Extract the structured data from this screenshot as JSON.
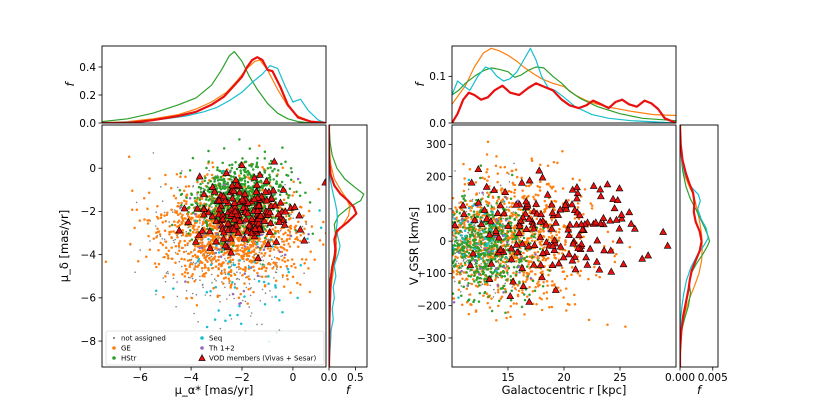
{
  "chart_data": [
    {
      "panel": "left-top-marginal",
      "type": "line",
      "ylabel": "f",
      "xlim": [
        -7.5,
        1.3
      ],
      "ylim": [
        0,
        0.55
      ],
      "yticks": [
        "0.0",
        "0.2",
        "0.4"
      ],
      "series": [
        {
          "name": "HStr",
          "color": "#2ca02c",
          "x": [
            -7.5,
            -6.5,
            -5.5,
            -4.5,
            -3.8,
            -3.2,
            -2.8,
            -2.5,
            -2.3,
            -2.0,
            -1.7,
            -1.4,
            -1.0,
            -0.6,
            -0.2,
            0.2,
            0.7,
            1.3
          ],
          "y": [
            0.01,
            0.03,
            0.07,
            0.13,
            0.18,
            0.27,
            0.38,
            0.48,
            0.51,
            0.44,
            0.33,
            0.24,
            0.14,
            0.07,
            0.03,
            0.01,
            0.0,
            0.0
          ]
        },
        {
          "name": "GE",
          "color": "#ff7f0e",
          "x": [
            -7.5,
            -6.5,
            -5.5,
            -4.5,
            -3.8,
            -3.2,
            -2.6,
            -2.2,
            -1.8,
            -1.5,
            -1.3,
            -1.0,
            -0.6,
            -0.2,
            0.2,
            0.7,
            1.3
          ],
          "y": [
            0.0,
            0.01,
            0.03,
            0.06,
            0.1,
            0.15,
            0.22,
            0.3,
            0.39,
            0.44,
            0.45,
            0.38,
            0.24,
            0.12,
            0.05,
            0.01,
            0.0
          ]
        },
        {
          "name": "Seq",
          "color": "#17becf",
          "x": [
            -7.5,
            -6.0,
            -5.0,
            -4.2,
            -3.5,
            -3.0,
            -2.5,
            -2.0,
            -1.6,
            -1.2,
            -0.9,
            -0.6,
            -0.3,
            0.0,
            0.3,
            0.6,
            1.0,
            1.3
          ],
          "y": [
            0.0,
            0.01,
            0.03,
            0.05,
            0.08,
            0.11,
            0.16,
            0.22,
            0.29,
            0.35,
            0.41,
            0.39,
            0.26,
            0.15,
            0.17,
            0.09,
            0.02,
            0.0
          ]
        },
        {
          "name": "VOD members (Vivas + Sesar)",
          "color": "#e8110f",
          "x": [
            -7.5,
            -6.5,
            -5.5,
            -4.5,
            -3.8,
            -3.2,
            -2.7,
            -2.3,
            -2.0,
            -1.8,
            -1.6,
            -1.4,
            -1.2,
            -1.0,
            -0.8,
            -0.5,
            -0.2,
            0.2,
            0.7,
            1.3
          ],
          "y": [
            0.0,
            0.0,
            0.02,
            0.05,
            0.08,
            0.13,
            0.19,
            0.27,
            0.33,
            0.4,
            0.45,
            0.47,
            0.45,
            0.38,
            0.37,
            0.26,
            0.13,
            0.04,
            0.01,
            0.0
          ]
        }
      ]
    },
    {
      "panel": "left-main-scatter",
      "type": "scatter",
      "xlabel": "μ_α* [mas/yr]",
      "ylabel": "μ_δ [mas/yr]",
      "xlim": [
        -7.5,
        1.3
      ],
      "ylim": [
        -9.2,
        2.0
      ],
      "xticks": [
        "−6",
        "−4",
        "−2",
        "0"
      ],
      "yticks": [
        "−8",
        "−6",
        "−4",
        "−2",
        "0"
      ],
      "groups": [
        {
          "name": "not assigned",
          "color": "#7f7f7f",
          "marker": "circle-small",
          "center": [
            -2.6,
            -3.6
          ],
          "spread": [
            1.3,
            1.5
          ],
          "count": 450
        },
        {
          "name": "GE",
          "color": "#ff7f0e",
          "marker": "circle",
          "center": [
            -2.5,
            -2.9
          ],
          "spread": [
            1.5,
            1.2
          ],
          "count": 1200
        },
        {
          "name": "HStr",
          "color": "#2ca02c",
          "marker": "circle",
          "center": [
            -2.1,
            -1.4
          ],
          "spread": [
            0.9,
            0.85
          ],
          "count": 800
        },
        {
          "name": "Seq",
          "color": "#17becf",
          "marker": "circle",
          "center": [
            -1.6,
            -4.6
          ],
          "spread": [
            1.4,
            1.7
          ],
          "count": 70
        },
        {
          "name": "Th 1+2",
          "color": "#9467bd",
          "marker": "circle",
          "center": [
            -2.5,
            -3.2
          ],
          "spread": [
            1.5,
            1.5
          ],
          "count": 40
        },
        {
          "name": "VOD members (Vivas + Sesar)",
          "color": "#e8110f",
          "marker": "triangle",
          "center": [
            -2.0,
            -2.0
          ],
          "spread": [
            1.0,
            0.75
          ],
          "count": 180
        }
      ]
    },
    {
      "panel": "left-right-marginal",
      "type": "line",
      "xlabel": "f",
      "xlim": [
        0,
        0.72
      ],
      "ylim": [
        -9.2,
        2.0
      ],
      "xticks": [
        "0.0",
        "0.5"
      ],
      "series": [
        {
          "name": "HStr",
          "color": "#2ca02c",
          "y": [
            2.0,
            1.2,
            0.6,
            0.0,
            -0.5,
            -0.9,
            -1.2,
            -1.5,
            -1.8,
            -2.2,
            -2.6,
            -3.0,
            -3.5,
            -4.0,
            -4.6,
            -5.2,
            -6.0,
            -9.2
          ],
          "x": [
            0.0,
            0.02,
            0.06,
            0.15,
            0.3,
            0.5,
            0.66,
            0.6,
            0.38,
            0.18,
            0.1,
            0.12,
            0.14,
            0.1,
            0.05,
            0.02,
            0.01,
            0.0
          ]
        },
        {
          "name": "GE",
          "color": "#ff7f0e",
          "y": [
            2.0,
            1.0,
            0.2,
            -0.5,
            -1.0,
            -1.4,
            -1.8,
            -2.2,
            -2.6,
            -3.0,
            -3.4,
            -3.8,
            -4.3,
            -4.8,
            -5.5,
            -6.3,
            -7.5,
            -9.2
          ],
          "x": [
            0.0,
            0.01,
            0.03,
            0.1,
            0.22,
            0.33,
            0.4,
            0.37,
            0.27,
            0.15,
            0.13,
            0.14,
            0.12,
            0.08,
            0.04,
            0.02,
            0.01,
            0.0
          ]
        },
        {
          "name": "Seq",
          "color": "#17becf",
          "y": [
            2.0,
            0.5,
            -0.5,
            -1.2,
            -1.6,
            -2.0,
            -2.4,
            -2.8,
            -3.2,
            -3.6,
            -4.0,
            -4.5,
            -5.0,
            -5.5,
            -6.0,
            -6.5,
            -7.0,
            -7.5,
            -8.0,
            -9.2
          ],
          "x": [
            0.0,
            0.0,
            0.02,
            0.08,
            0.12,
            0.15,
            0.16,
            0.14,
            0.17,
            0.21,
            0.17,
            0.1,
            0.13,
            0.08,
            0.1,
            0.06,
            0.08,
            0.04,
            0.03,
            0.0
          ]
        },
        {
          "name": "VOD members (Vivas + Sesar)",
          "color": "#e8110f",
          "y": [
            2.0,
            0.5,
            -0.3,
            -0.8,
            -1.2,
            -1.5,
            -1.8,
            -2.1,
            -2.5,
            -2.9,
            -3.3,
            -3.7,
            -4.1,
            -4.6,
            -5.2,
            -6.0,
            -7.0,
            -9.2
          ],
          "x": [
            0.0,
            0.0,
            0.03,
            0.1,
            0.22,
            0.36,
            0.47,
            0.52,
            0.35,
            0.15,
            0.1,
            0.12,
            0.11,
            0.06,
            0.03,
            0.02,
            0.01,
            0.0
          ]
        }
      ]
    },
    {
      "panel": "right-top-marginal",
      "type": "line",
      "ylabel": "f",
      "xlim": [
        10,
        30
      ],
      "ylim": [
        0,
        0.165
      ],
      "yticks": [
        "0.0",
        "0.1"
      ],
      "series": [
        {
          "name": "GE",
          "color": "#ff7f0e",
          "x": [
            10,
            10.6,
            11.2,
            12,
            12.8,
            13.5,
            14.2,
            15,
            15.8,
            16.5,
            17.3,
            18,
            19,
            20,
            21,
            22,
            23,
            24,
            26,
            28,
            30
          ],
          "y": [
            0.04,
            0.06,
            0.08,
            0.12,
            0.15,
            0.16,
            0.155,
            0.145,
            0.132,
            0.118,
            0.105,
            0.095,
            0.085,
            0.078,
            0.06,
            0.048,
            0.04,
            0.034,
            0.025,
            0.018,
            0.016
          ]
        },
        {
          "name": "HStr",
          "color": "#2ca02c",
          "x": [
            10,
            10.6,
            11.2,
            12,
            12.8,
            13.5,
            14.2,
            15,
            15.6,
            16.2,
            16.8,
            17.5,
            18.2,
            19,
            19.8,
            20.5,
            21.5,
            23,
            25,
            27,
            30
          ],
          "y": [
            0.06,
            0.07,
            0.085,
            0.1,
            0.112,
            0.118,
            0.115,
            0.11,
            0.098,
            0.103,
            0.113,
            0.12,
            0.118,
            0.1,
            0.085,
            0.068,
            0.052,
            0.035,
            0.02,
            0.01,
            0.005
          ]
        },
        {
          "name": "Seq",
          "color": "#17becf",
          "x": [
            10,
            10.5,
            11,
            11.6,
            12.3,
            13,
            13.5,
            14,
            14.6,
            15.2,
            15.8,
            16.4,
            17,
            17.5,
            18,
            18.6,
            19.2,
            20,
            21,
            22.5,
            24,
            26,
            30
          ],
          "y": [
            0.06,
            0.09,
            0.08,
            0.07,
            0.1,
            0.12,
            0.115,
            0.1,
            0.09,
            0.095,
            0.11,
            0.135,
            0.16,
            0.135,
            0.1,
            0.075,
            0.07,
            0.055,
            0.035,
            0.018,
            0.01,
            0.005,
            0.0
          ]
        },
        {
          "name": "VOD members (Vivas + Sesar)",
          "color": "#e8110f",
          "x": [
            10,
            10.5,
            11,
            11.5,
            12,
            12.6,
            13.2,
            13.8,
            14.5,
            15.2,
            16,
            16.8,
            17.5,
            18.2,
            19,
            19.8,
            20.5,
            21.3,
            22,
            22.6,
            23.3,
            24,
            24.6,
            25.2,
            25.8,
            26.5,
            27.2,
            27.8,
            28.4,
            29,
            30
          ],
          "y": [
            0.0,
            0.02,
            0.05,
            0.065,
            0.06,
            0.05,
            0.055,
            0.07,
            0.08,
            0.065,
            0.06,
            0.075,
            0.085,
            0.078,
            0.07,
            0.05,
            0.038,
            0.032,
            0.038,
            0.048,
            0.04,
            0.032,
            0.045,
            0.05,
            0.04,
            0.035,
            0.048,
            0.042,
            0.03,
            0.01,
            0.0
          ]
        }
      ]
    },
    {
      "panel": "right-main-scatter",
      "type": "scatter",
      "xlabel": "Galactocentric r [kpc]",
      "ylabel": "V_GSR [km/s]",
      "xlim": [
        10,
        30
      ],
      "ylim": [
        -390,
        360
      ],
      "xticks": [
        "15",
        "20",
        "25"
      ],
      "yticks": [
        "−300",
        "−200",
        "−100",
        "0",
        "100",
        "200",
        "300"
      ],
      "groups": [
        {
          "name": "not assigned",
          "color": "#7f7f7f",
          "marker": "circle-small",
          "center": [
            12.5,
            -5
          ],
          "spread": [
            2.4,
            70
          ],
          "count": 400
        },
        {
          "name": "GE",
          "color": "#ff7f0e",
          "center": [
            14.5,
            0
          ],
          "spread": [
            3.8,
            100
          ],
          "count": 1100
        },
        {
          "name": "HStr",
          "color": "#2ca02c",
          "center": [
            12.8,
            -20
          ],
          "spread": [
            2.2,
            80
          ],
          "count": 600
        },
        {
          "name": "Seq",
          "color": "#17becf",
          "center": [
            12.0,
            20
          ],
          "spread": [
            2.0,
            60
          ],
          "count": 50
        },
        {
          "name": "Th 1+2",
          "color": "#9467bd",
          "center": [
            13.0,
            0
          ],
          "spread": [
            2.5,
            80
          ],
          "count": 40
        },
        {
          "name": "VOD members (Vivas + Sesar)",
          "color": "#e8110f",
          "marker": "triangle",
          "center": [
            18.5,
            30
          ],
          "spread": [
            4.5,
            80
          ],
          "count": 170
        }
      ]
    },
    {
      "panel": "right-right-marginal",
      "type": "line",
      "xlabel": "f",
      "xlim": [
        0,
        0.0058
      ],
      "ylim": [
        -390,
        360
      ],
      "xticks": [
        "0.000",
        "0.005"
      ],
      "series": [
        {
          "name": "GE",
          "color": "#ff7f0e",
          "y": [
            360,
            300,
            240,
            200,
            170,
            140,
            100,
            60,
            20,
            -20,
            -60,
            -100,
            -140,
            -180,
            -220,
            -260,
            -300,
            -390
          ],
          "x": [
            0.0,
            0.0001,
            0.0004,
            0.0008,
            0.0014,
            0.0021,
            0.0026,
            0.003,
            0.0033,
            0.0034,
            0.0033,
            0.0029,
            0.0022,
            0.0014,
            0.0008,
            0.0004,
            0.0001,
            0.0
          ]
        },
        {
          "name": "HStr",
          "color": "#2ca02c",
          "y": [
            360,
            280,
            220,
            170,
            130,
            100,
            70,
            40,
            15,
            0,
            -15,
            -40,
            -70,
            -100,
            -130,
            -160,
            -200,
            -240,
            -280,
            -390
          ],
          "x": [
            0.0,
            0.0001,
            0.0004,
            0.0009,
            0.0016,
            0.0024,
            0.0031,
            0.0038,
            0.0043,
            0.0045,
            0.0042,
            0.0035,
            0.0025,
            0.0017,
            0.0014,
            0.0016,
            0.0013,
            0.0007,
            0.0002,
            0.0
          ]
        },
        {
          "name": "Seq",
          "color": "#17becf",
          "y": [
            360,
            260,
            210,
            170,
            145,
            125,
            100,
            70,
            40,
            10,
            -15,
            -45,
            -80,
            -120,
            -160,
            -200,
            -240,
            -390
          ],
          "x": [
            0.0,
            0.0002,
            0.0007,
            0.0016,
            0.0028,
            0.0031,
            0.0027,
            0.0032,
            0.004,
            0.0043,
            0.0036,
            0.0026,
            0.0017,
            0.001,
            0.0006,
            0.0003,
            0.0001,
            0.0
          ]
        },
        {
          "name": "VOD members (Vivas + Sesar)",
          "color": "#e8110f",
          "y": [
            360,
            300,
            250,
            210,
            180,
            150,
            120,
            90,
            60,
            30,
            0,
            -30,
            -60,
            -90,
            -120,
            -150,
            -190,
            -230,
            -280,
            -340,
            -390
          ],
          "x": [
            0.0,
            0.0001,
            0.0004,
            0.0009,
            0.0014,
            0.002,
            0.0022,
            0.0021,
            0.0024,
            0.003,
            0.0033,
            0.003,
            0.0024,
            0.0018,
            0.0015,
            0.0013,
            0.0009,
            0.0005,
            0.0002,
            0.0,
            0.0
          ]
        }
      ]
    }
  ],
  "legend": {
    "items": [
      {
        "label": "not assigned",
        "color": "#7f7f7f",
        "marker": "circle-small"
      },
      {
        "label": "Seq",
        "color": "#17becf",
        "marker": "circle"
      },
      {
        "label": "GE",
        "color": "#ff7f0e",
        "marker": "circle"
      },
      {
        "label": "Th 1+2",
        "color": "#9467bd",
        "marker": "circle"
      },
      {
        "label": "HStr",
        "color": "#2ca02c",
        "marker": "circle"
      },
      {
        "label": "VOD members (Vivas + Sesar)",
        "color": "#e8110f",
        "marker": "triangle"
      }
    ]
  }
}
